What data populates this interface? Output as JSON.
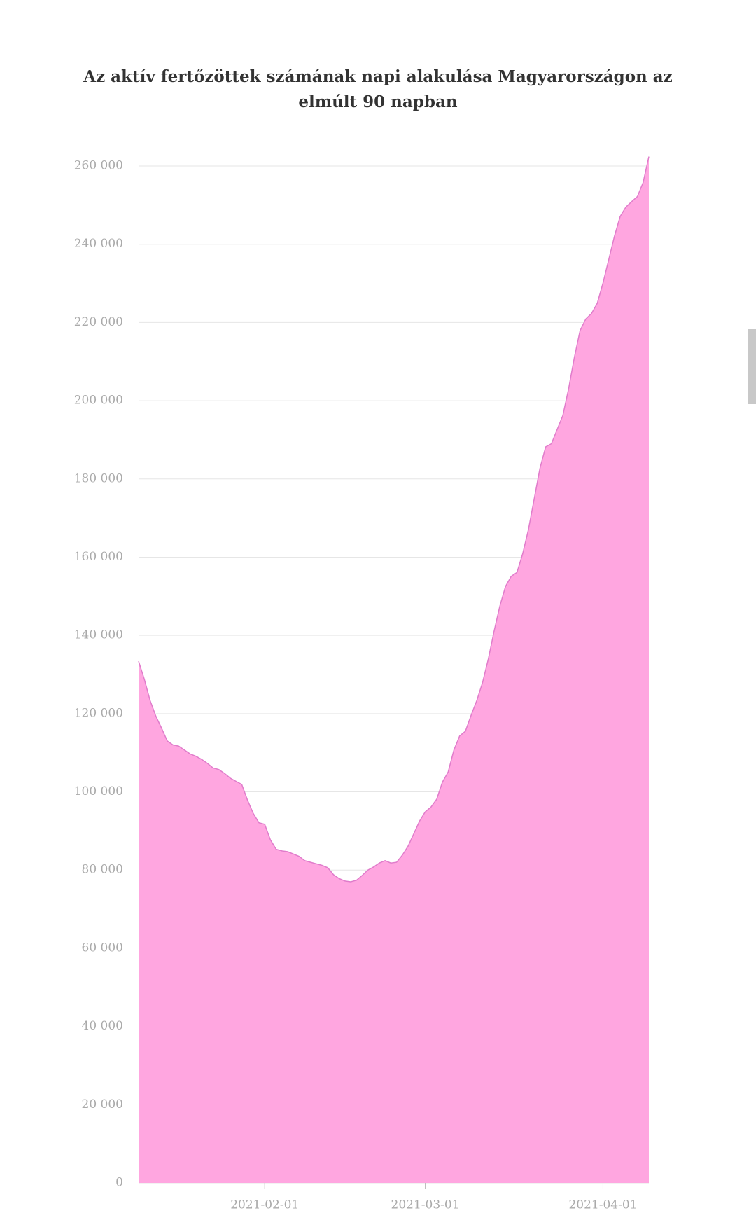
{
  "chart_data": {
    "type": "area",
    "title": "Az aktív fertőzöttek számának napi alakulása Magyarországon az elmúlt 90 napban",
    "x": [
      "2021-01-10",
      "2021-01-11",
      "2021-01-12",
      "2021-01-13",
      "2021-01-14",
      "2021-01-15",
      "2021-01-16",
      "2021-01-17",
      "2021-01-18",
      "2021-01-19",
      "2021-01-20",
      "2021-01-21",
      "2021-01-22",
      "2021-01-23",
      "2021-01-24",
      "2021-01-25",
      "2021-01-26",
      "2021-01-27",
      "2021-01-28",
      "2021-01-29",
      "2021-01-30",
      "2021-01-31",
      "2021-02-01",
      "2021-02-02",
      "2021-02-03",
      "2021-02-04",
      "2021-02-05",
      "2021-02-06",
      "2021-02-07",
      "2021-02-08",
      "2021-02-09",
      "2021-02-10",
      "2021-02-11",
      "2021-02-12",
      "2021-02-13",
      "2021-02-14",
      "2021-02-15",
      "2021-02-16",
      "2021-02-17",
      "2021-02-18",
      "2021-02-19",
      "2021-02-20",
      "2021-02-21",
      "2021-02-22",
      "2021-02-23",
      "2021-02-24",
      "2021-02-25",
      "2021-02-26",
      "2021-02-27",
      "2021-02-28",
      "2021-03-01",
      "2021-03-02",
      "2021-03-03",
      "2021-03-04",
      "2021-03-05",
      "2021-03-06",
      "2021-03-07",
      "2021-03-08",
      "2021-03-09",
      "2021-03-10",
      "2021-03-11",
      "2021-03-12",
      "2021-03-13",
      "2021-03-14",
      "2021-03-15",
      "2021-03-16",
      "2021-03-17",
      "2021-03-18",
      "2021-03-19",
      "2021-03-20",
      "2021-03-21",
      "2021-03-22",
      "2021-03-23",
      "2021-03-24",
      "2021-03-25",
      "2021-03-26",
      "2021-03-27",
      "2021-03-28",
      "2021-03-29",
      "2021-03-30",
      "2021-03-31",
      "2021-04-01",
      "2021-04-02",
      "2021-04-03",
      "2021-04-04",
      "2021-04-05",
      "2021-04-06",
      "2021-04-07",
      "2021-04-08",
      "2021-04-09"
    ],
    "values": [
      133400,
      128800,
      123400,
      119400,
      116300,
      113000,
      112000,
      111700,
      110700,
      109700,
      109100,
      108300,
      107300,
      106100,
      105700,
      104700,
      103500,
      102700,
      101900,
      97900,
      94500,
      92100,
      91700,
      87700,
      85300,
      84900,
      84700,
      84100,
      83500,
      82400,
      82000,
      81600,
      81200,
      80600,
      78800,
      77800,
      77200,
      77000,
      77400,
      78600,
      80000,
      80800,
      81800,
      82400,
      81800,
      82000,
      83800,
      86100,
      89300,
      92500,
      94900,
      96100,
      98100,
      102500,
      105100,
      110700,
      114300,
      115500,
      119600,
      123400,
      128000,
      134000,
      141000,
      147400,
      152500,
      155100,
      156100,
      160900,
      167100,
      174900,
      182700,
      188200,
      189000,
      192600,
      196200,
      203000,
      211000,
      217900,
      220900,
      222300,
      224900,
      230100,
      236100,
      242100,
      247100,
      249500,
      250900,
      252200,
      255800,
      262400
    ],
    "color": "#ffa6e0",
    "line_color": "#e07ccb",
    "xlim": [
      "2021-01-10",
      "2021-04-09"
    ],
    "xticks": [
      "2021-02-01",
      "2021-03-01",
      "2021-04-01"
    ],
    "ylim": [
      0,
      260000
    ],
    "yticks": [
      0,
      {
        "value": 20000,
        "label": "20 000"
      },
      {
        "value": 40000,
        "label": "40 000"
      },
      {
        "value": 60000,
        "label": "60 000"
      },
      {
        "value": 80000,
        "label": "80 000"
      },
      {
        "value": 100000,
        "label": "100 000"
      },
      {
        "value": 120000,
        "label": "120 000"
      },
      {
        "value": 140000,
        "label": "140 000"
      },
      {
        "value": 160000,
        "label": "160 000"
      },
      {
        "value": 180000,
        "label": "180 000"
      },
      {
        "value": 200000,
        "label": "200 000"
      },
      {
        "value": 220000,
        "label": "220 000"
      },
      {
        "value": 240000,
        "label": "240 000"
      },
      {
        "value": 260000,
        "label": "260 000"
      }
    ],
    "grid": true
  }
}
